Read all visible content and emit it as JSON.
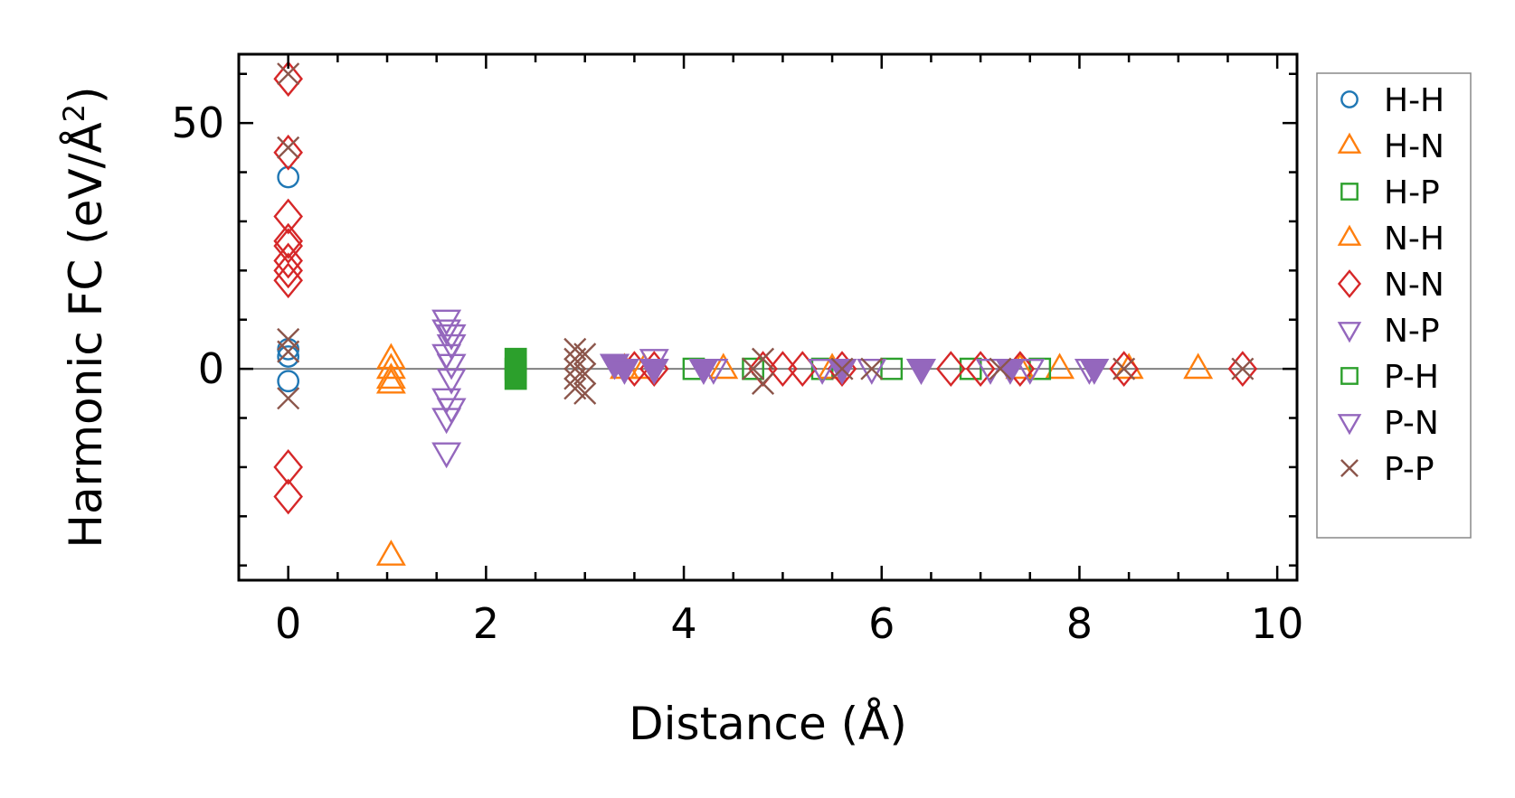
{
  "chart_data": {
    "type": "scatter",
    "xlabel": "Distance (Å)",
    "ylabel_main": "Harmonic FC (eV/Å",
    "ylabel_sup": "2",
    "ylabel_close": ")",
    "xlim": [
      -0.5,
      10.2
    ],
    "ylim": [
      -43,
      64
    ],
    "xticks": [
      0,
      2,
      4,
      6,
      8,
      10
    ],
    "xtick_labels": [
      "0",
      "2",
      "4",
      "6",
      "8",
      "10"
    ],
    "yticks": [
      0,
      50
    ],
    "ytick_labels": [
      "0",
      "50"
    ],
    "x_minor_step": 0.5,
    "y_minor_step": 10,
    "zero_line": true,
    "grid": false,
    "legend_position": "outside-right",
    "series": [
      {
        "name": "H-H",
        "color": "#1f77b4",
        "marker": "circle",
        "filled": false,
        "points": [
          [
            0,
            39
          ],
          [
            0,
            4
          ],
          [
            0,
            2.5
          ],
          [
            0,
            -2.5
          ]
        ]
      },
      {
        "name": "H-N",
        "color": "#ff7f0e",
        "marker": "triangle-up",
        "filled": false,
        "points": [
          [
            1.04,
            2
          ],
          [
            1.04,
            -2
          ],
          [
            1.04,
            -3
          ],
          [
            1.04,
            -38
          ],
          [
            3.4,
            0
          ],
          [
            4.4,
            0
          ],
          [
            7.8,
            0
          ],
          [
            8.5,
            0
          ],
          [
            9.2,
            0
          ]
        ]
      },
      {
        "name": "H-P",
        "color": "#2ca02c",
        "marker": "square",
        "filled": false,
        "points": [
          [
            4.1,
            0
          ],
          [
            4.7,
            0
          ],
          [
            5.4,
            0
          ],
          [
            6.1,
            0
          ],
          [
            6.9,
            0
          ],
          [
            7.6,
            0
          ]
        ]
      },
      {
        "name": "N-H",
        "color": "#ff7f0e",
        "marker": "triangle-up",
        "filled": false,
        "points": [
          [
            1.04,
            0
          ],
          [
            3.6,
            0
          ],
          [
            5.5,
            0
          ],
          [
            7.4,
            0
          ]
        ]
      },
      {
        "name": "N-N",
        "color": "#d62728",
        "marker": "diamond",
        "filled": false,
        "points": [
          [
            0,
            59
          ],
          [
            0,
            44
          ],
          [
            0,
            31
          ],
          [
            0,
            26
          ],
          [
            0,
            25
          ],
          [
            0,
            22
          ],
          [
            0,
            20
          ],
          [
            0,
            18
          ],
          [
            0,
            -20
          ],
          [
            0,
            -26
          ],
          [
            3.5,
            0
          ],
          [
            3.7,
            0
          ],
          [
            4.8,
            0
          ],
          [
            5.0,
            0
          ],
          [
            5.2,
            0
          ],
          [
            5.6,
            0
          ],
          [
            6.7,
            0
          ],
          [
            7.0,
            0
          ],
          [
            7.4,
            0
          ],
          [
            8.45,
            0
          ],
          [
            9.65,
            0
          ]
        ]
      },
      {
        "name": "N-P",
        "color": "#9467bd",
        "marker": "triangle-down",
        "filled": false,
        "points": [
          [
            1.6,
            10
          ],
          [
            1.6,
            8
          ],
          [
            1.65,
            7
          ],
          [
            1.65,
            5
          ],
          [
            1.6,
            3
          ],
          [
            1.65,
            1
          ],
          [
            1.65,
            -2
          ],
          [
            1.6,
            -6
          ],
          [
            1.65,
            -8
          ],
          [
            1.6,
            -10
          ],
          [
            1.6,
            -17
          ],
          [
            3.3,
            1
          ],
          [
            3.7,
            2
          ],
          [
            4.2,
            0
          ],
          [
            4.3,
            0
          ],
          [
            5.4,
            0
          ],
          [
            5.9,
            0
          ],
          [
            6.4,
            0
          ],
          [
            7.1,
            0
          ],
          [
            7.5,
            0
          ],
          [
            8.1,
            0
          ]
        ]
      },
      {
        "name": "P-H",
        "color": "#2ca02c",
        "marker": "square",
        "filled": true,
        "points": [
          [
            2.3,
            2
          ],
          [
            2.3,
            0
          ],
          [
            2.3,
            -2
          ]
        ]
      },
      {
        "name": "P-N",
        "color": "#9467bd",
        "marker": "triangle-down",
        "filled": true,
        "points": [
          [
            3.3,
            1
          ],
          [
            3.4,
            0
          ],
          [
            3.7,
            0
          ],
          [
            4.2,
            0
          ],
          [
            5.6,
            0
          ],
          [
            6.4,
            0
          ],
          [
            7.3,
            0
          ],
          [
            8.15,
            0
          ]
        ]
      },
      {
        "name": "P-P",
        "color": "#8c564b",
        "marker": "x",
        "filled": false,
        "points": [
          [
            0,
            60
          ],
          [
            0,
            45
          ],
          [
            0,
            6
          ],
          [
            0,
            3.5
          ],
          [
            0,
            -6
          ],
          [
            2.9,
            4
          ],
          [
            2.9,
            2
          ],
          [
            2.9,
            0
          ],
          [
            2.9,
            -2
          ],
          [
            2.9,
            -4
          ],
          [
            3.0,
            3
          ],
          [
            3.0,
            -1
          ],
          [
            3.0,
            -5
          ],
          [
            4.7,
            0
          ],
          [
            4.8,
            2
          ],
          [
            4.8,
            -3
          ],
          [
            5.6,
            0
          ],
          [
            5.9,
            0
          ],
          [
            7.2,
            0
          ],
          [
            8.45,
            0
          ],
          [
            9.65,
            0
          ]
        ]
      }
    ]
  }
}
